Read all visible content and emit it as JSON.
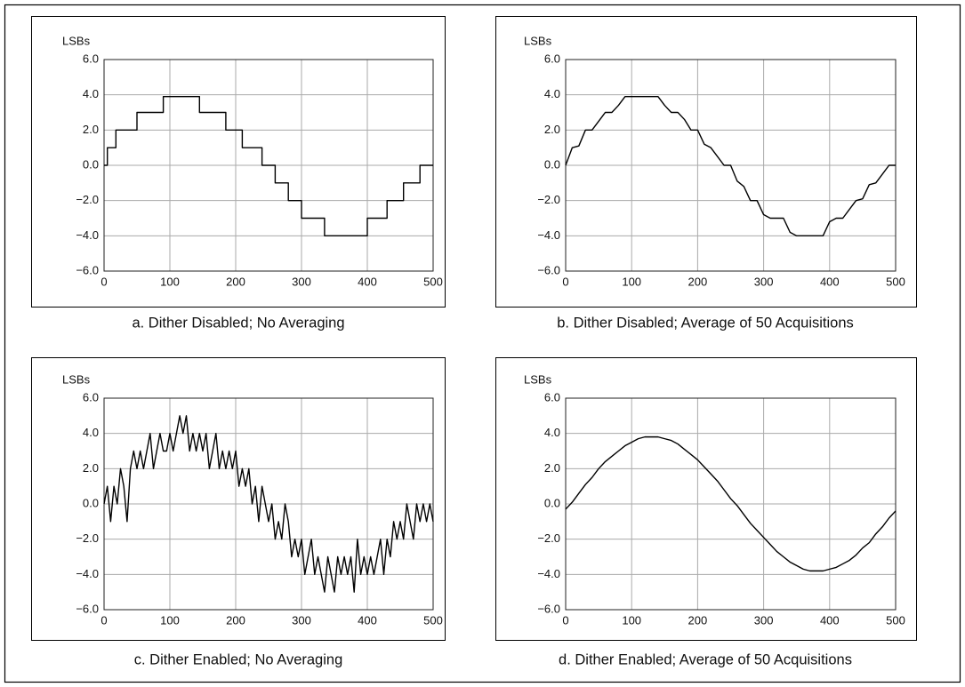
{
  "chart_data": [
    {
      "type": "line",
      "title": "a. Dither Disabled; No Averaging",
      "ylabel": "LSBs",
      "color": "#000000",
      "grid": true,
      "x": [
        0,
        5,
        5,
        18,
        18,
        50,
        50,
        90,
        90,
        145,
        145,
        185,
        185,
        210,
        210,
        240,
        240,
        260,
        260,
        280,
        280,
        300,
        300,
        335,
        335,
        400,
        400,
        430,
        430,
        455,
        455,
        480,
        480,
        500
      ],
      "values": [
        0,
        0,
        1,
        1,
        2,
        2,
        3,
        3,
        3.9,
        3.9,
        3,
        3,
        2,
        2,
        1,
        1,
        0,
        0,
        -1,
        -1,
        -2,
        -2,
        -3,
        -3,
        -4,
        -4,
        -3,
        -3,
        -2,
        -2,
        -1,
        -1,
        0,
        0
      ],
      "xlim": [
        0,
        500
      ],
      "ylim": [
        -6,
        6
      ],
      "xticks": [
        0,
        100,
        200,
        300,
        400,
        500
      ],
      "yticks": [
        {
          "value": -6,
          "label": "−6.0"
        },
        {
          "value": -4,
          "label": "−4.0"
        },
        {
          "value": -2,
          "label": "−2.0"
        },
        {
          "value": 0,
          "label": "0.0"
        },
        {
          "value": 2,
          "label": "2.0"
        },
        {
          "value": 4,
          "label": "4.0"
        },
        {
          "value": 6,
          "label": "6.0"
        }
      ]
    },
    {
      "type": "line",
      "title": "b. Dither Disabled; Average of 50 Acquisitions",
      "ylabel": "LSBs",
      "color": "#000000",
      "grid": true,
      "x": [
        0,
        10,
        20,
        30,
        40,
        50,
        60,
        70,
        80,
        90,
        100,
        110,
        120,
        130,
        140,
        150,
        160,
        170,
        180,
        190,
        200,
        210,
        220,
        230,
        240,
        250,
        260,
        270,
        280,
        290,
        300,
        310,
        320,
        330,
        340,
        350,
        360,
        370,
        380,
        390,
        400,
        410,
        420,
        430,
        440,
        450,
        460,
        470,
        480,
        490,
        500
      ],
      "values": [
        0,
        1,
        1.1,
        2,
        2,
        2.5,
        3,
        3,
        3.4,
        3.9,
        3.9,
        3.9,
        3.9,
        3.9,
        3.9,
        3.4,
        3,
        3,
        2.6,
        2,
        2,
        1.2,
        1,
        0.5,
        0,
        0,
        -0.9,
        -1.2,
        -2,
        -2,
        -2.8,
        -3,
        -3,
        -3,
        -3.8,
        -4,
        -4,
        -4,
        -4,
        -4,
        -3.2,
        -3,
        -3,
        -2.5,
        -2,
        -1.9,
        -1.1,
        -1,
        -0.5,
        0,
        0
      ],
      "xlim": [
        0,
        500
      ],
      "ylim": [
        -6,
        6
      ],
      "xticks": [
        0,
        100,
        200,
        300,
        400,
        500
      ],
      "yticks": [
        {
          "value": -6,
          "label": "−6.0"
        },
        {
          "value": -4,
          "label": "−4.0"
        },
        {
          "value": -2,
          "label": "−2.0"
        },
        {
          "value": 0,
          "label": "0.0"
        },
        {
          "value": 2,
          "label": "2.0"
        },
        {
          "value": 4,
          "label": "4.0"
        },
        {
          "value": 6,
          "label": "6.0"
        }
      ]
    },
    {
      "type": "line",
      "title": "c. Dither Enabled; No Averaging",
      "ylabel": "LSBs",
      "color": "#000000",
      "grid": true,
      "x": [
        0,
        5,
        10,
        15,
        20,
        25,
        30,
        35,
        40,
        45,
        50,
        55,
        60,
        65,
        70,
        75,
        80,
        85,
        90,
        95,
        100,
        105,
        110,
        115,
        120,
        125,
        130,
        135,
        140,
        145,
        150,
        155,
        160,
        165,
        170,
        175,
        180,
        185,
        190,
        195,
        200,
        205,
        210,
        215,
        220,
        225,
        230,
        235,
        240,
        245,
        250,
        255,
        260,
        265,
        270,
        275,
        280,
        285,
        290,
        295,
        300,
        305,
        310,
        315,
        320,
        325,
        330,
        335,
        340,
        345,
        350,
        355,
        360,
        365,
        370,
        375,
        380,
        385,
        390,
        395,
        400,
        405,
        410,
        415,
        420,
        425,
        430,
        435,
        440,
        445,
        450,
        455,
        460,
        465,
        470,
        475,
        480,
        485,
        490,
        495,
        500
      ],
      "values": [
        0,
        1,
        -1,
        1,
        0,
        2,
        1,
        -1,
        2,
        3,
        2,
        3,
        2,
        3,
        4,
        2,
        3,
        4,
        3,
        3,
        4,
        3,
        4,
        5,
        4,
        5,
        3,
        4,
        3,
        4,
        3,
        4,
        2,
        3,
        4,
        2,
        3,
        2,
        3,
        2,
        3,
        1,
        2,
        1,
        2,
        0,
        1,
        -1,
        1,
        0,
        -1,
        0,
        -2,
        -1,
        -2,
        0,
        -1,
        -3,
        -2,
        -3,
        -2,
        -4,
        -3,
        -2,
        -4,
        -3,
        -4,
        -5,
        -3,
        -4,
        -5,
        -3,
        -4,
        -3,
        -4,
        -3,
        -5,
        -2,
        -4,
        -3,
        -4,
        -3,
        -4,
        -3,
        -2,
        -4,
        -2,
        -3,
        -1,
        -2,
        -1,
        -2,
        0,
        -1,
        -2,
        0,
        -1,
        0,
        -1,
        0,
        -1
      ],
      "xlim": [
        0,
        500
      ],
      "ylim": [
        -6,
        6
      ],
      "xticks": [
        0,
        100,
        200,
        300,
        400,
        500
      ],
      "yticks": [
        {
          "value": -6,
          "label": "−6.0"
        },
        {
          "value": -4,
          "label": "−4.0"
        },
        {
          "value": -2,
          "label": "−2.0"
        },
        {
          "value": 0,
          "label": "0.0"
        },
        {
          "value": 2,
          "label": "2.0"
        },
        {
          "value": 4,
          "label": "4.0"
        },
        {
          "value": 6,
          "label": "6.0"
        }
      ]
    },
    {
      "type": "line",
      "title": "d. Dither Enabled; Average of 50 Acquisitions",
      "ylabel": "LSBs",
      "color": "#000000",
      "grid": true,
      "x": [
        0,
        10,
        20,
        30,
        40,
        50,
        60,
        70,
        80,
        90,
        100,
        110,
        120,
        130,
        140,
        150,
        160,
        170,
        180,
        190,
        200,
        210,
        220,
        230,
        240,
        250,
        260,
        270,
        280,
        290,
        300,
        310,
        320,
        330,
        340,
        350,
        360,
        370,
        380,
        390,
        400,
        410,
        420,
        430,
        440,
        450,
        460,
        470,
        480,
        490,
        500
      ],
      "values": [
        -0.3,
        0.1,
        0.6,
        1.1,
        1.5,
        2,
        2.4,
        2.7,
        3,
        3.3,
        3.5,
        3.7,
        3.8,
        3.8,
        3.8,
        3.7,
        3.6,
        3.4,
        3.1,
        2.8,
        2.5,
        2.1,
        1.7,
        1.3,
        0.8,
        0.3,
        -0.1,
        -0.6,
        -1.1,
        -1.5,
        -1.9,
        -2.3,
        -2.7,
        -3,
        -3.3,
        -3.5,
        -3.7,
        -3.8,
        -3.8,
        -3.8,
        -3.7,
        -3.6,
        -3.4,
        -3.2,
        -2.9,
        -2.5,
        -2.2,
        -1.7,
        -1.3,
        -0.8,
        -0.4
      ],
      "xlim": [
        0,
        500
      ],
      "ylim": [
        -6,
        6
      ],
      "xticks": [
        0,
        100,
        200,
        300,
        400,
        500
      ],
      "yticks": [
        {
          "value": -6,
          "label": "−6.0"
        },
        {
          "value": -4,
          "label": "−4.0"
        },
        {
          "value": -2,
          "label": "−2.0"
        },
        {
          "value": 0,
          "label": "0.0"
        },
        {
          "value": 2,
          "label": "2.0"
        },
        {
          "value": 4,
          "label": "4.0"
        },
        {
          "value": 6,
          "label": "6.0"
        }
      ]
    }
  ]
}
